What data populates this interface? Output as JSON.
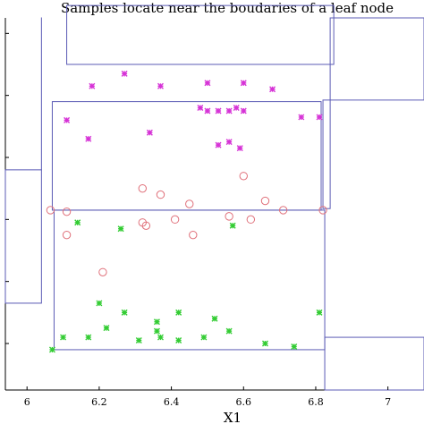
{
  "chart_data": {
    "type": "scatter",
    "title": "Samples locate near the boudaries of a leaf node",
    "xlabel": "X1",
    "ylabel": "",
    "xlim": [
      5.94,
      7.1
    ],
    "ylim": [
      0,
      1.2
    ],
    "x_ticks": [
      {
        "value": 6,
        "label": "6"
      },
      {
        "value": 6.2,
        "label": "6.2"
      },
      {
        "value": 6.4,
        "label": "6.4"
      },
      {
        "value": 6.6,
        "label": "6.6"
      },
      {
        "value": 6.8,
        "label": "6.8"
      },
      {
        "value": 7,
        "label": "7"
      }
    ],
    "y_ticks": [
      0.15,
      0.35,
      0.55,
      0.75,
      0.95,
      1.15
    ],
    "colors": {
      "frame": "#5b5bb5",
      "circles": "#e0707a",
      "magenta": "#d633d6",
      "green": "#33cc33"
    },
    "regions": [
      {
        "x": [
          5.94,
          6.04
        ],
        "y": [
          0.28,
          0.71
        ]
      },
      {
        "x": [
          6.04,
          6.04
        ],
        "y": [
          0.71,
          1.2
        ]
      },
      {
        "x": [
          6.11,
          6.85
        ],
        "y": [
          1.05,
          1.24
        ]
      },
      {
        "x": [
          6.07,
          6.815
        ],
        "y": [
          0.58,
          0.93
        ]
      },
      {
        "x": [
          6.82,
          6.84
        ],
        "y": [
          0.585,
          0.935
        ]
      },
      {
        "x": [
          6.075,
          6.825
        ],
        "y": [
          0.13,
          0.58
        ]
      },
      {
        "x": [
          6.825,
          7.1
        ],
        "y": [
          0.0,
          0.17
        ]
      },
      {
        "x": [
          6.84,
          7.1
        ],
        "y": [
          0.935,
          1.2
        ]
      }
    ],
    "series": [
      {
        "marker": "circle",
        "points": [
          [
            6.065,
            0.58
          ],
          [
            6.11,
            0.575
          ],
          [
            6.11,
            0.5
          ],
          [
            6.21,
            0.38
          ],
          [
            6.32,
            0.65
          ],
          [
            6.37,
            0.63
          ],
          [
            6.32,
            0.54
          ],
          [
            6.33,
            0.53
          ],
          [
            6.41,
            0.55
          ],
          [
            6.45,
            0.6
          ],
          [
            6.46,
            0.5
          ],
          [
            6.56,
            0.56
          ],
          [
            6.6,
            0.69
          ],
          [
            6.62,
            0.55
          ],
          [
            6.66,
            0.61
          ],
          [
            6.71,
            0.58
          ],
          [
            6.82,
            0.58
          ]
        ]
      },
      {
        "marker": "star",
        "color": "#d633d6",
        "points": [
          [
            6.27,
            1.02
          ],
          [
            6.81,
            0.88
          ],
          [
            6.18,
            0.98
          ],
          [
            6.37,
            0.98
          ],
          [
            6.5,
            0.99
          ],
          [
            6.6,
            0.99
          ],
          [
            6.68,
            0.97
          ],
          [
            6.48,
            0.91
          ],
          [
            6.5,
            0.9
          ],
          [
            6.53,
            0.9
          ],
          [
            6.56,
            0.9
          ],
          [
            6.58,
            0.91
          ],
          [
            6.6,
            0.9
          ],
          [
            6.11,
            0.87
          ],
          [
            6.76,
            0.88
          ],
          [
            6.17,
            0.81
          ],
          [
            6.34,
            0.83
          ],
          [
            6.56,
            0.8
          ],
          [
            6.59,
            0.78
          ],
          [
            6.53,
            0.79
          ]
        ]
      },
      {
        "marker": "star",
        "color": "#33cc33",
        "points": [
          [
            6.14,
            0.54
          ],
          [
            6.26,
            0.52
          ],
          [
            6.57,
            0.53
          ],
          [
            6.2,
            0.28
          ],
          [
            6.36,
            0.22
          ],
          [
            6.27,
            0.25
          ],
          [
            6.42,
            0.25
          ],
          [
            6.52,
            0.23
          ],
          [
            6.56,
            0.19
          ],
          [
            6.81,
            0.25
          ],
          [
            6.22,
            0.2
          ],
          [
            6.36,
            0.19
          ],
          [
            6.37,
            0.17
          ],
          [
            6.17,
            0.17
          ],
          [
            6.1,
            0.17
          ],
          [
            6.31,
            0.16
          ],
          [
            6.42,
            0.16
          ],
          [
            6.49,
            0.17
          ],
          [
            6.66,
            0.15
          ],
          [
            6.74,
            0.14
          ],
          [
            6.07,
            0.13
          ]
        ]
      }
    ]
  }
}
